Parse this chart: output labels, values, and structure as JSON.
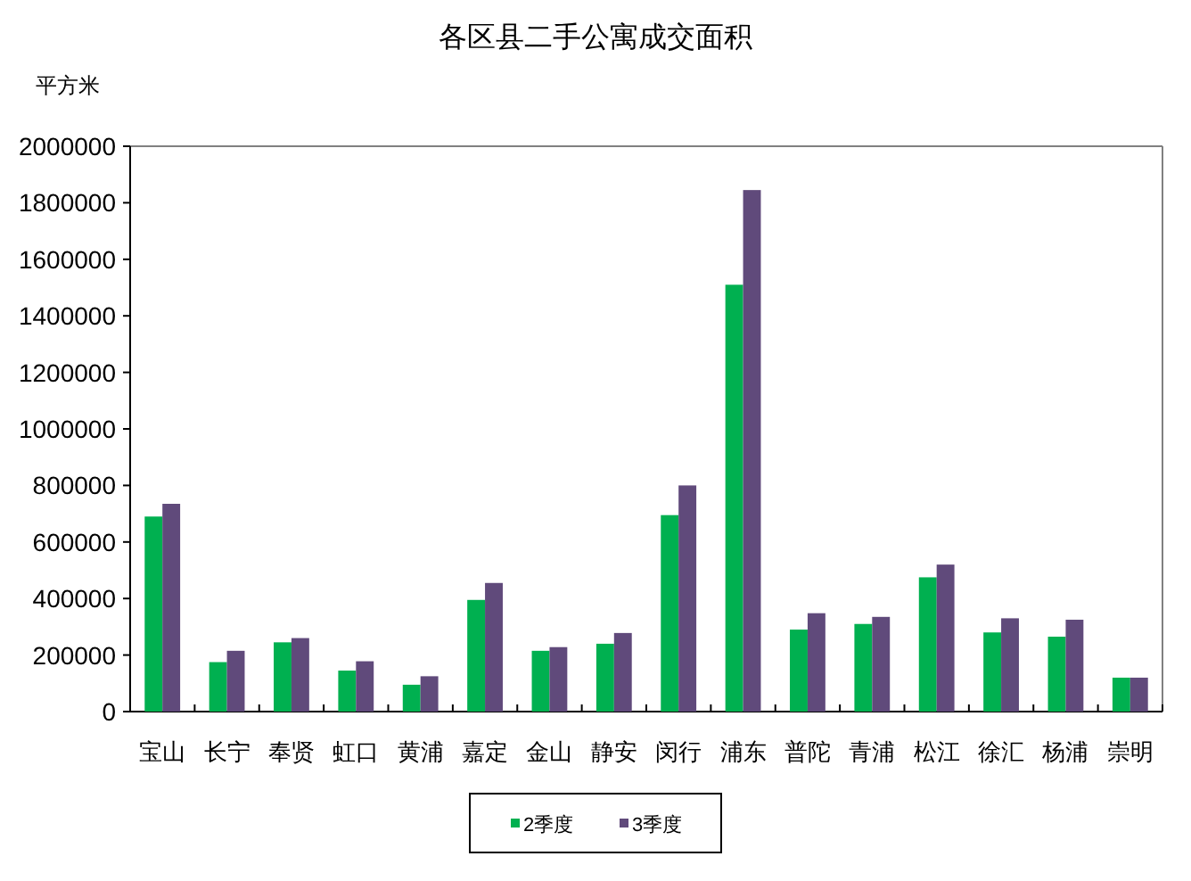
{
  "chart_data": {
    "type": "bar",
    "title": "各区县二手公寓成交面积",
    "ylabel": "平方米",
    "categories": [
      "宝山",
      "长宁",
      "奉贤",
      "虹口",
      "黄浦",
      "嘉定",
      "金山",
      "静安",
      "闵行",
      "浦东",
      "普陀",
      "青浦",
      "松江",
      "徐汇",
      "杨浦",
      "崇明"
    ],
    "series": [
      {
        "name": "2季度",
        "color": "#00b050",
        "values": [
          690000,
          175000,
          245000,
          145000,
          95000,
          395000,
          215000,
          240000,
          695000,
          1510000,
          290000,
          310000,
          475000,
          280000,
          265000,
          120000
        ]
      },
      {
        "name": "3季度",
        "color": "#604a7b",
        "values": [
          735000,
          215000,
          260000,
          178000,
          125000,
          455000,
          228000,
          278000,
          800000,
          1845000,
          348000,
          335000,
          520000,
          330000,
          325000,
          120000
        ]
      }
    ],
    "ylim": [
      0,
      2000000
    ],
    "yticks": [
      0,
      200000,
      400000,
      600000,
      800000,
      1000000,
      1200000,
      1400000,
      1600000,
      1800000,
      2000000
    ],
    "grid": false,
    "legend": "bottom"
  }
}
